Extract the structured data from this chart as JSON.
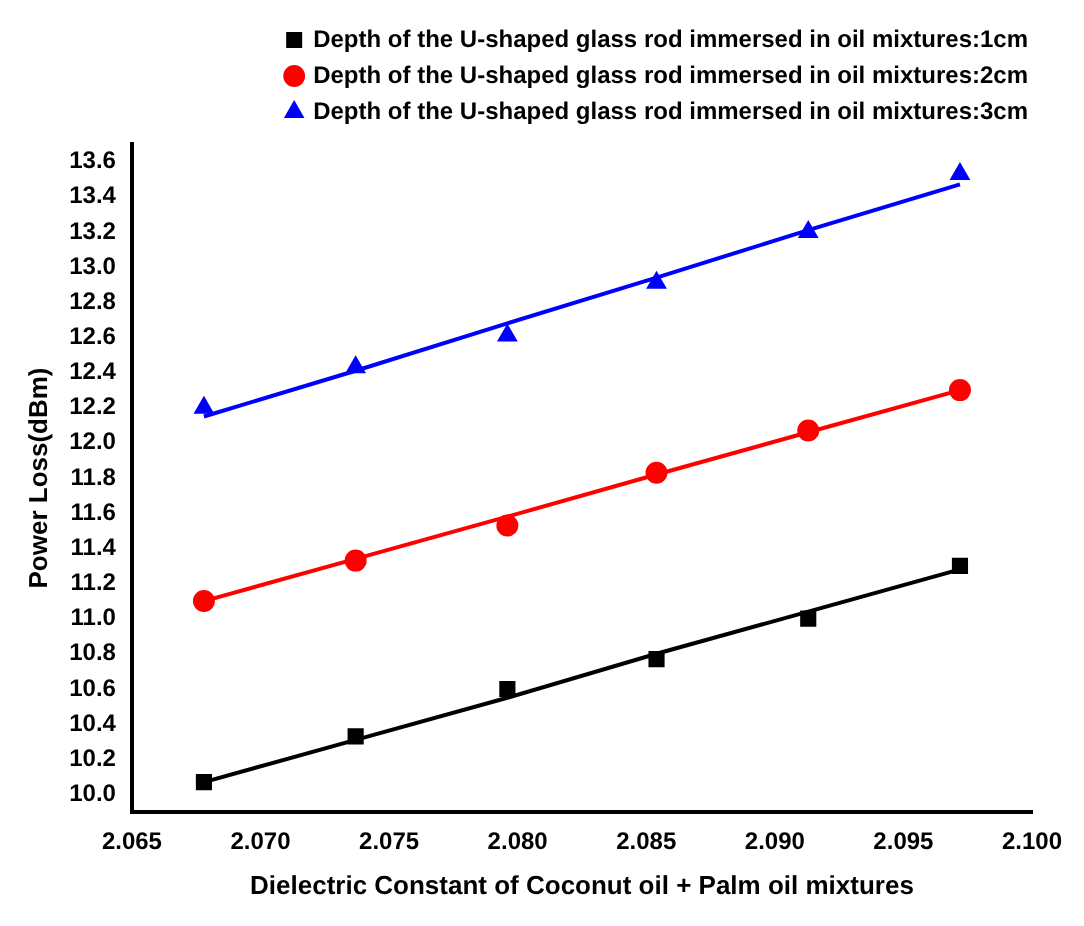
{
  "chart_data": {
    "type": "scatter",
    "xlabel": "Dielectric Constant of Coconut oil + Palm oil mixtures",
    "ylabel": "Power Loss(dBm)",
    "x": [
      2.0678,
      2.0737,
      2.0796,
      2.0854,
      2.0913,
      2.0972
    ],
    "series": [
      {
        "name": "Depth of the U-shaped glass rod immersed in oil mixtures:1cm",
        "color": "#000000",
        "marker": "square",
        "values": [
          10.07,
          10.33,
          10.6,
          10.77,
          11.0,
          11.3
        ]
      },
      {
        "name": "Depth of the U-shaped glass rod immersed in oil mixtures:2cm",
        "color": "#ff0000",
        "marker": "circle",
        "values": [
          11.1,
          11.33,
          11.53,
          11.83,
          12.07,
          12.3
        ]
      },
      {
        "name": "Depth of the U-shaped glass rod immersed in oil mixtures:3cm",
        "color": "#0000ff",
        "marker": "triangle",
        "values": [
          12.2,
          12.43,
          12.61,
          12.91,
          13.2,
          13.53
        ]
      },
      {
        "type": "line",
        "color": "#000000",
        "marker": "none",
        "values": [
          10.07,
          10.31,
          10.55,
          10.8,
          11.04,
          11.28
        ]
      },
      {
        "type": "line",
        "color": "#ff0000",
        "marker": "none",
        "values": [
          11.1,
          11.34,
          11.58,
          11.82,
          12.06,
          12.3
        ]
      },
      {
        "type": "line",
        "color": "#0000ff",
        "marker": "none",
        "values": [
          12.15,
          12.41,
          12.68,
          12.94,
          13.21,
          13.47
        ]
      }
    ],
    "xlim": [
      2.065,
      2.1
    ],
    "xticks": [
      2.065,
      {
        "value": 2.07,
        "label": "2.070"
      },
      2.075,
      {
        "value": 2.08,
        "label": "2.080"
      },
      2.085,
      {
        "value": 2.09,
        "label": "2.090"
      },
      2.095,
      {
        "value": 2.1,
        "label": "2.100"
      }
    ],
    "ylim": [
      9.9,
      13.7
    ],
    "yticks": [
      {
        "value": 10,
        "label": "10.0"
      },
      10.2,
      10.4,
      10.6,
      10.8,
      {
        "value": 11,
        "label": "11.0"
      },
      11.2,
      11.4,
      11.6,
      11.8,
      {
        "value": 12,
        "label": "12.0"
      },
      12.2,
      12.4,
      12.6,
      12.8,
      {
        "value": 13,
        "label": "13.0"
      },
      13.2,
      13.4,
      13.6
    ],
    "grid": false,
    "legend": "top"
  }
}
